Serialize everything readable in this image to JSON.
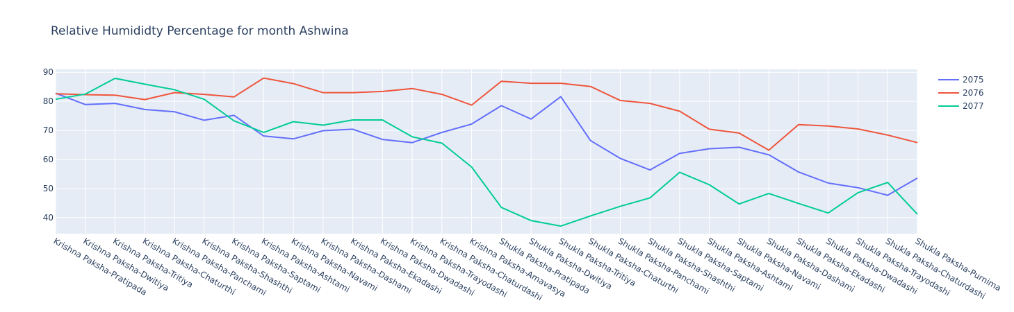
{
  "chart_data": {
    "type": "line",
    "title": "Relative Humididty Percentage for month Ashwina",
    "xlabel": "",
    "ylabel": "",
    "ylim": [
      34.5,
      91
    ],
    "yticks": [
      40,
      50,
      60,
      70,
      80,
      90
    ],
    "grid": true,
    "legend": "top-right",
    "categories": [
      "Krishna Paksha-Pratipada",
      "Krishna Paksha-Dwitiya",
      "Krishna Paksha-Tritiya",
      "Krishna Paksha-Chaturthi",
      "Krishna Paksha-Panchami",
      "Krishna Paksha-Shashthi",
      "Krishna Paksha-Saptami",
      "Krishna Paksha-Ashtami",
      "Krishna Paksha-Navami",
      "Krishna Paksha-Dashami",
      "Krishna Paksha-Ekadashi",
      "Krishna Paksha-Dwadashi",
      "Krishna Paksha-Trayodashi",
      "Krishna Paksha-Chaturdashi",
      "Krishna Paksha-Amavasya",
      "Shukla Paksha-Pratipada",
      "Shukla Paksha-Dwitiya",
      "Shukla Paksha-Tritiya",
      "Shukla Paksha-Chaturthi",
      "Shukla Paksha-Panchami",
      "Shukla Paksha-Shashthi",
      "Shukla Paksha-Saptami",
      "Shukla Paksha-Ashtami",
      "Shukla Paksha-Navami",
      "Shukla Paksha-Dashami",
      "Shukla Paksha-Ekadashi",
      "Shukla Paksha-Dwadashi",
      "Shukla Paksha-Trayodashi",
      "Shukla Paksha-Chaturdashi",
      "Shukla Paksha-Purnima"
    ],
    "series": [
      {
        "name": "2075",
        "color": "#636efa",
        "values": [
          82.8,
          78.9,
          79.3,
          77.2,
          76.4,
          73.5,
          75.2,
          68.1,
          67.1,
          69.9,
          70.4,
          66.9,
          65.8,
          69.3,
          72.2,
          78.5,
          73.9,
          81.6,
          66.5,
          60.4,
          56.4,
          62.1,
          63.7,
          64.2,
          61.6,
          55.7,
          51.9,
          50.3,
          47.7,
          53.6
        ]
      },
      {
        "name": "2076",
        "color": "#ef553b",
        "values": [
          82.6,
          82.3,
          82.1,
          80.6,
          83.0,
          82.4,
          81.5,
          88.0,
          86.1,
          83.0,
          83.0,
          83.4,
          84.4,
          82.4,
          78.7,
          86.9,
          86.2,
          86.2,
          85.1,
          80.3,
          79.3,
          76.6,
          70.4,
          69.1,
          63.2,
          72.0,
          71.5,
          70.5,
          68.4,
          65.8
        ]
      },
      {
        "name": "2077",
        "color": "#00cc96",
        "values": [
          80.7,
          82.5,
          87.9,
          85.9,
          84.0,
          80.7,
          73.3,
          69.3,
          73.0,
          71.8,
          73.6,
          73.6,
          67.8,
          65.6,
          57.4,
          43.5,
          39.0,
          37.1,
          40.6,
          43.9,
          46.8,
          55.6,
          51.3,
          44.7,
          48.3,
          44.9,
          41.6,
          48.6,
          52.1,
          41.2
        ]
      }
    ]
  }
}
